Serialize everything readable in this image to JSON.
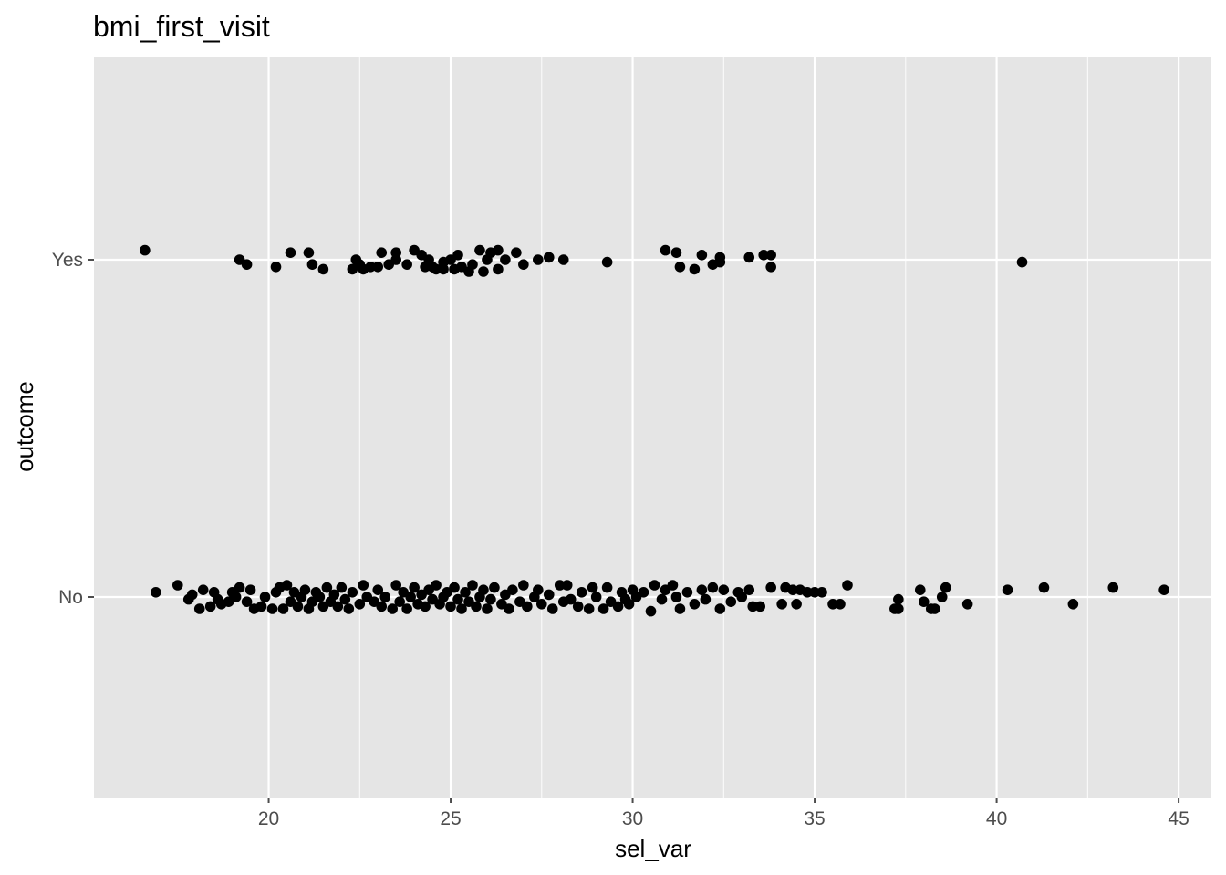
{
  "chart_data": {
    "type": "scatter",
    "title": "bmi_first_visit",
    "xlabel": "sel_var",
    "ylabel": "outcome",
    "xlim": [
      15.2,
      45.9
    ],
    "x_ticks": [
      20,
      25,
      30,
      35,
      40,
      45
    ],
    "x_tick_labels": [
      "20",
      "25",
      "30",
      "35",
      "40",
      "45"
    ],
    "y_categories": [
      "No",
      "Yes"
    ],
    "y_tick_labels": [
      "No",
      "Yes"
    ],
    "grid": true,
    "jitter": "vertical jitter within each outcome category",
    "colors": {
      "panel": "#e5e5e5",
      "grid": "#ffffff",
      "point": "#000000",
      "tick": "#4d4d4d"
    },
    "series": [
      {
        "category": "Yes",
        "points": [
          [
            16.6,
            -0.04
          ],
          [
            19.2,
            0.0
          ],
          [
            19.4,
            0.02
          ],
          [
            20.2,
            0.03
          ],
          [
            20.6,
            -0.03
          ],
          [
            21.1,
            -0.03
          ],
          [
            21.2,
            0.02
          ],
          [
            21.5,
            0.04
          ],
          [
            22.3,
            0.04
          ],
          [
            22.4,
            0.0
          ],
          [
            22.5,
            0.02
          ],
          [
            22.6,
            0.04
          ],
          [
            22.8,
            0.03
          ],
          [
            23.0,
            0.03
          ],
          [
            23.1,
            -0.03
          ],
          [
            23.3,
            0.02
          ],
          [
            23.5,
            0.0
          ],
          [
            23.5,
            -0.03
          ],
          [
            23.8,
            0.02
          ],
          [
            24.0,
            -0.04
          ],
          [
            24.2,
            -0.02
          ],
          [
            24.3,
            0.03
          ],
          [
            24.4,
            0.0
          ],
          [
            24.5,
            0.03
          ],
          [
            24.6,
            0.04
          ],
          [
            24.8,
            0.01
          ],
          [
            24.8,
            0.04
          ],
          [
            25.0,
            0.0
          ],
          [
            25.1,
            0.04
          ],
          [
            25.2,
            -0.02
          ],
          [
            25.3,
            0.03
          ],
          [
            25.5,
            0.05
          ],
          [
            25.6,
            0.02
          ],
          [
            25.8,
            -0.04
          ],
          [
            25.9,
            0.05
          ],
          [
            26.0,
            0.0
          ],
          [
            26.1,
            -0.03
          ],
          [
            26.3,
            0.04
          ],
          [
            26.3,
            -0.04
          ],
          [
            26.5,
            0.0
          ],
          [
            26.8,
            -0.03
          ],
          [
            27.0,
            0.02
          ],
          [
            27.4,
            0.0
          ],
          [
            27.7,
            -0.01
          ],
          [
            28.1,
            0.0
          ],
          [
            29.3,
            0.01
          ],
          [
            30.9,
            -0.04
          ],
          [
            31.2,
            -0.03
          ],
          [
            31.3,
            0.03
          ],
          [
            31.7,
            0.04
          ],
          [
            31.9,
            -0.02
          ],
          [
            32.2,
            0.02
          ],
          [
            32.4,
            0.01
          ],
          [
            32.4,
            -0.01
          ],
          [
            33.2,
            -0.01
          ],
          [
            33.6,
            -0.02
          ],
          [
            33.8,
            0.03
          ],
          [
            33.8,
            -0.02
          ],
          [
            40.7,
            0.01
          ]
        ]
      },
      {
        "category": "No",
        "points": [
          [
            16.9,
            -0.02
          ],
          [
            17.5,
            -0.05
          ],
          [
            17.8,
            0.01
          ],
          [
            17.9,
            -0.01
          ],
          [
            18.1,
            0.05
          ],
          [
            18.2,
            -0.03
          ],
          [
            18.4,
            0.04
          ],
          [
            18.5,
            -0.02
          ],
          [
            18.6,
            0.01
          ],
          [
            18.7,
            0.03
          ],
          [
            18.9,
            0.02
          ],
          [
            19.0,
            -0.02
          ],
          [
            19.1,
            0.0
          ],
          [
            19.2,
            -0.04
          ],
          [
            19.4,
            0.02
          ],
          [
            19.5,
            -0.03
          ],
          [
            19.6,
            0.05
          ],
          [
            19.8,
            0.04
          ],
          [
            19.9,
            0.0
          ],
          [
            20.1,
            0.05
          ],
          [
            20.2,
            -0.02
          ],
          [
            20.3,
            -0.04
          ],
          [
            20.4,
            0.05
          ],
          [
            20.5,
            -0.05
          ],
          [
            20.6,
            0.02
          ],
          [
            20.7,
            -0.02
          ],
          [
            20.8,
            0.04
          ],
          [
            20.9,
            0.0
          ],
          [
            21.0,
            -0.03
          ],
          [
            21.1,
            0.05
          ],
          [
            21.2,
            0.02
          ],
          [
            21.3,
            -0.02
          ],
          [
            21.4,
            0.0
          ],
          [
            21.5,
            0.04
          ],
          [
            21.6,
            -0.04
          ],
          [
            21.7,
            0.02
          ],
          [
            21.8,
            -0.01
          ],
          [
            21.9,
            0.04
          ],
          [
            22.0,
            -0.04
          ],
          [
            22.1,
            0.01
          ],
          [
            22.2,
            0.05
          ],
          [
            22.3,
            -0.02
          ],
          [
            22.5,
            0.03
          ],
          [
            22.6,
            -0.05
          ],
          [
            22.7,
            0.0
          ],
          [
            22.9,
            0.02
          ],
          [
            23.0,
            -0.03
          ],
          [
            23.1,
            0.04
          ],
          [
            23.2,
            0.0
          ],
          [
            23.4,
            0.05
          ],
          [
            23.5,
            -0.05
          ],
          [
            23.6,
            0.02
          ],
          [
            23.7,
            -0.02
          ],
          [
            23.8,
            0.05
          ],
          [
            23.9,
            0.0
          ],
          [
            24.0,
            -0.04
          ],
          [
            24.1,
            0.03
          ],
          [
            24.2,
            -0.01
          ],
          [
            24.3,
            0.04
          ],
          [
            24.4,
            -0.03
          ],
          [
            24.5,
            0.01
          ],
          [
            24.6,
            -0.05
          ],
          [
            24.7,
            0.03
          ],
          [
            24.8,
            0.0
          ],
          [
            24.9,
            -0.02
          ],
          [
            25.0,
            0.04
          ],
          [
            25.1,
            -0.04
          ],
          [
            25.2,
            0.01
          ],
          [
            25.3,
            0.05
          ],
          [
            25.4,
            -0.02
          ],
          [
            25.5,
            0.02
          ],
          [
            25.6,
            -0.05
          ],
          [
            25.7,
            0.04
          ],
          [
            25.8,
            0.0
          ],
          [
            25.9,
            -0.03
          ],
          [
            26.0,
            0.05
          ],
          [
            26.1,
            0.01
          ],
          [
            26.2,
            -0.04
          ],
          [
            26.4,
            0.03
          ],
          [
            26.5,
            -0.01
          ],
          [
            26.6,
            0.05
          ],
          [
            26.7,
            -0.03
          ],
          [
            26.9,
            0.02
          ],
          [
            27.0,
            -0.05
          ],
          [
            27.1,
            0.04
          ],
          [
            27.3,
            0.0
          ],
          [
            27.4,
            -0.03
          ],
          [
            27.5,
            0.03
          ],
          [
            27.7,
            -0.01
          ],
          [
            27.8,
            0.05
          ],
          [
            28.0,
            -0.05
          ],
          [
            28.1,
            0.02
          ],
          [
            28.2,
            -0.05
          ],
          [
            28.3,
            0.01
          ],
          [
            28.5,
            0.04
          ],
          [
            28.6,
            -0.02
          ],
          [
            28.8,
            0.05
          ],
          [
            28.9,
            -0.04
          ],
          [
            29.0,
            0.0
          ],
          [
            29.2,
            0.05
          ],
          [
            29.3,
            -0.04
          ],
          [
            29.4,
            0.02
          ],
          [
            29.6,
            0.04
          ],
          [
            29.7,
            -0.02
          ],
          [
            29.8,
            0.01
          ],
          [
            29.9,
            0.03
          ],
          [
            30.0,
            -0.03
          ],
          [
            30.1,
            0.0
          ],
          [
            30.3,
            -0.02
          ],
          [
            30.5,
            0.06
          ],
          [
            30.6,
            -0.05
          ],
          [
            30.8,
            0.01
          ],
          [
            30.9,
            -0.03
          ],
          [
            31.1,
            -0.05
          ],
          [
            31.2,
            0.0
          ],
          [
            31.3,
            0.05
          ],
          [
            31.5,
            -0.02
          ],
          [
            31.7,
            0.03
          ],
          [
            31.9,
            -0.03
          ],
          [
            32.0,
            0.01
          ],
          [
            32.2,
            -0.04
          ],
          [
            32.4,
            0.05
          ],
          [
            32.5,
            -0.03
          ],
          [
            32.7,
            0.02
          ],
          [
            32.9,
            -0.02
          ],
          [
            33.0,
            0.0
          ],
          [
            33.2,
            -0.03
          ],
          [
            33.3,
            0.04
          ],
          [
            33.5,
            0.04
          ],
          [
            33.8,
            -0.04
          ],
          [
            34.1,
            0.03
          ],
          [
            34.2,
            -0.04
          ],
          [
            34.4,
            -0.03
          ],
          [
            34.5,
            0.03
          ],
          [
            34.6,
            -0.03
          ],
          [
            34.8,
            -0.02
          ],
          [
            35.0,
            -0.02
          ],
          [
            35.2,
            -0.02
          ],
          [
            35.5,
            0.03
          ],
          [
            35.7,
            0.03
          ],
          [
            35.9,
            -0.05
          ],
          [
            37.2,
            0.05
          ],
          [
            37.3,
            0.01
          ],
          [
            37.3,
            0.05
          ],
          [
            37.9,
            -0.03
          ],
          [
            38.0,
            0.02
          ],
          [
            38.2,
            0.05
          ],
          [
            38.3,
            0.05
          ],
          [
            38.5,
            0.0
          ],
          [
            38.6,
            -0.04
          ],
          [
            39.2,
            0.03
          ],
          [
            40.3,
            -0.03
          ],
          [
            41.3,
            -0.04
          ],
          [
            42.1,
            0.03
          ],
          [
            43.2,
            -0.04
          ],
          [
            44.6,
            -0.03
          ]
        ]
      }
    ]
  }
}
